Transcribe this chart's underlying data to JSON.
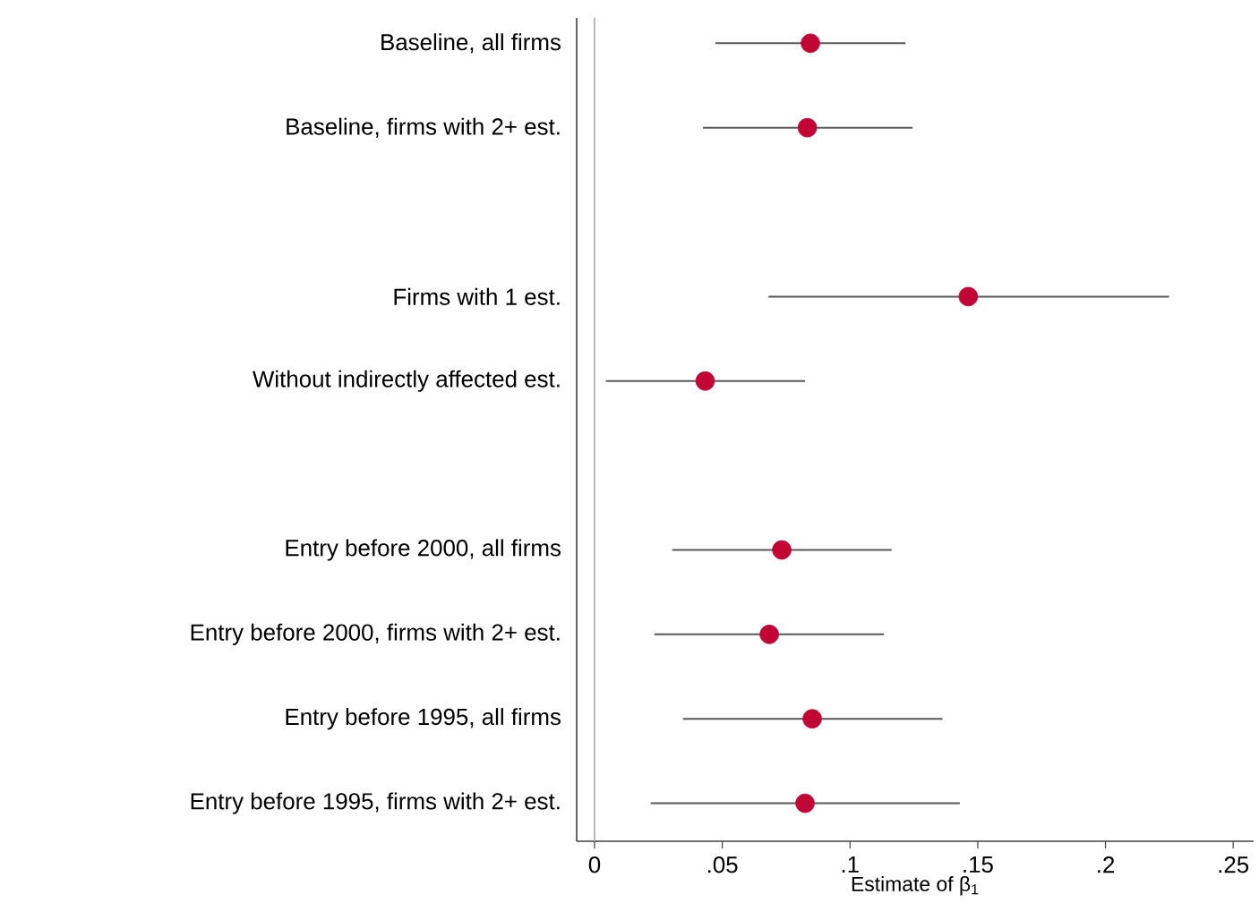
{
  "chart_data": {
    "type": "scatter",
    "orientation": "horizontal",
    "xlabel": "Estimate of β$_{1}$",
    "categories": [
      "Baseline, all firms",
      "Baseline, firms with 2+ est.",
      null,
      "Firms with 1 est.",
      "Without indirectly affected est.",
      null,
      "Entry before 2000, all firms",
      "Entry before 2000, firms with 2+ est.",
      "Entry before 1995, all firms",
      "Entry before 1995, firms with 2+ est."
    ],
    "values": [
      0.0845,
      0.0833,
      null,
      0.1463,
      0.0433,
      null,
      0.0733,
      0.0684,
      0.0852,
      0.0824
    ],
    "errors": [
      [
        0.0473,
        0.1217
      ],
      [
        0.0424,
        0.1245
      ],
      null,
      [
        0.0681,
        0.2249
      ],
      [
        0.0044,
        0.0824
      ],
      null,
      [
        0.0304,
        0.1163
      ],
      [
        0.0234,
        0.1133
      ],
      [
        0.0346,
        0.1362
      ],
      [
        0.022,
        0.143
      ]
    ],
    "color": "#c10534",
    "marker": "circle",
    "xlim": [
      -0.007,
      0.258
    ],
    "xticks": [
      0,
      {
        "value": 0.05,
        "label": ".05"
      },
      {
        "value": 0.1,
        "label": ".1"
      },
      {
        "value": 0.15,
        "label": ".15"
      },
      {
        "value": 0.2,
        "label": ".2"
      },
      {
        "value": 0.25,
        "label": ".25"
      }
    ],
    "ref_lines": [
      {
        "axis": "x",
        "value": 0,
        "color": "#a8a8a8"
      }
    ]
  }
}
